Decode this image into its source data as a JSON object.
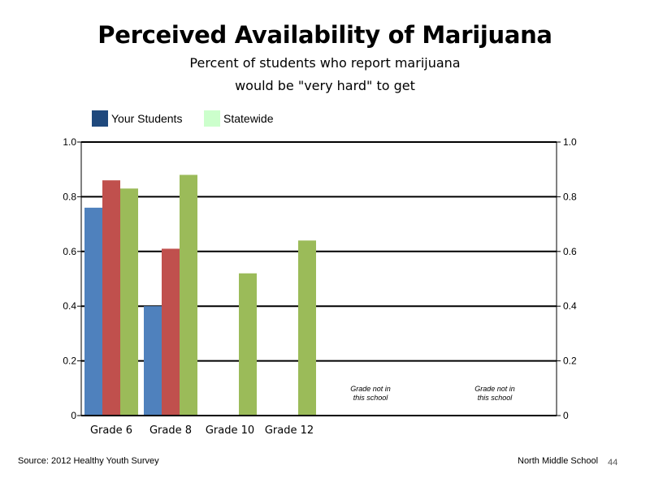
{
  "title": "Perceived Availability of Marijuana",
  "subtitle_line1": "Percent of students who report marijuana",
  "subtitle_line2": "would be \"very hard\" to get",
  "legend": {
    "your_students": {
      "label": "Your Students",
      "color": "#1f497d"
    },
    "statewide": {
      "label": "Statewide",
      "color": "#ccffcc"
    }
  },
  "footer": {
    "source": "Source: 2012 Healthy Youth Survey",
    "school": "North Middle School",
    "page_number": "44"
  },
  "chart_data": {
    "type": "bar",
    "categories": [
      "Grade 6",
      "Grade 8",
      "Grade 10",
      "Grade 12",
      "",
      ""
    ],
    "series": [
      {
        "color": "#4f81bd",
        "values": [
          0.76,
          0.4,
          null,
          null,
          null,
          null
        ]
      },
      {
        "color": "#c0504d",
        "values": [
          0.86,
          0.61,
          null,
          null,
          null,
          null
        ]
      },
      {
        "color": "#9bbb59",
        "values": [
          0.83,
          0.88,
          0.52,
          0.64,
          null,
          null
        ]
      }
    ],
    "annotations": [
      {
        "category_index": 4,
        "lines": [
          "Grade not in",
          "this school"
        ]
      },
      {
        "category_index": 5,
        "lines": [
          "Grade not in",
          "this school"
        ]
      }
    ],
    "y_ticks": [
      "0",
      "0.2",
      "0.4",
      "0.6",
      "0.8",
      "1.0"
    ],
    "y_tick_values": [
      0,
      0.2,
      0.4,
      0.6,
      0.8,
      1.0
    ],
    "ylim": [
      0,
      1.0
    ],
    "grid": true,
    "secondary_y_axis": true,
    "legend_position": "top-left"
  }
}
